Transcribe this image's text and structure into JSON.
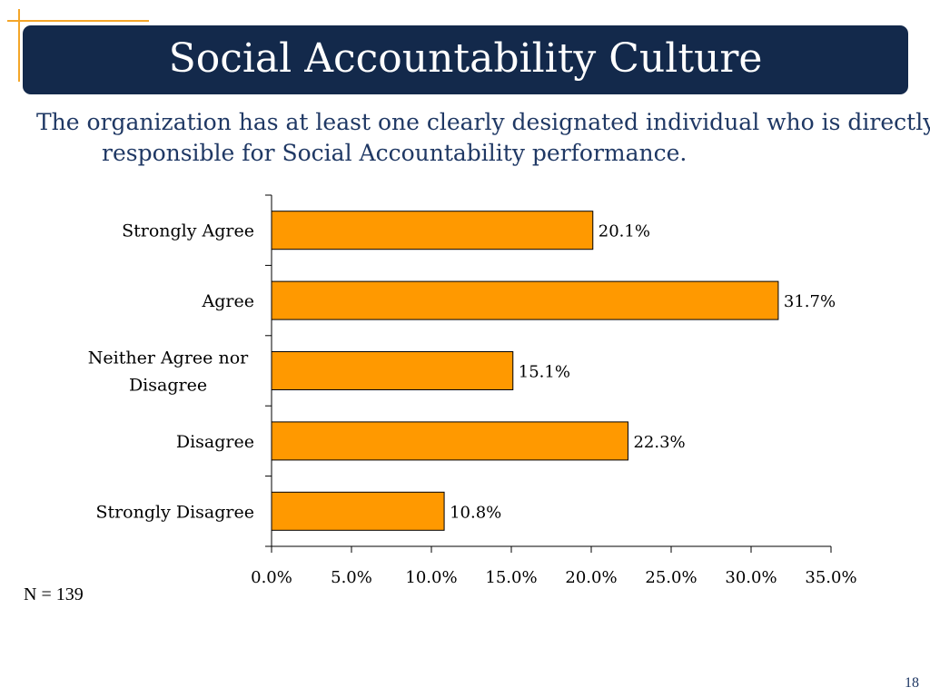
{
  "slide": {
    "title": "Social Accountability Culture",
    "subtitle": "The organization has at least one clearly designated individual who is directly responsible for Social Accountability performance.",
    "n_label": "N = 139",
    "page_number": "18"
  },
  "colors": {
    "title_bar": "#13294b",
    "bar_fill": "#ff9900",
    "accent_line": "#f4a629",
    "subtitle_text": "#1f3864"
  },
  "chart_data": {
    "type": "bar",
    "orientation": "horizontal",
    "categories": [
      "Strongly Agree",
      "Agree",
      "Neither Agree nor Disagree",
      "Disagree",
      "Strongly Disagree"
    ],
    "category_lines": [
      [
        "Strongly Agree"
      ],
      [
        "Agree"
      ],
      [
        "Neither Agree nor",
        "Disagree"
      ],
      [
        "Disagree"
      ],
      [
        "Strongly Disagree"
      ]
    ],
    "values": [
      20.1,
      31.7,
      15.1,
      22.3,
      10.8
    ],
    "data_labels": [
      "20.1%",
      "31.7%",
      "15.1%",
      "22.3%",
      "10.8%"
    ],
    "x_ticks": [
      0,
      5,
      10,
      15,
      20,
      25,
      30,
      35
    ],
    "x_tick_labels": [
      "0.0%",
      "5.0%",
      "10.0%",
      "15.0%",
      "20.0%",
      "25.0%",
      "30.0%",
      "35.0%"
    ],
    "xlim": [
      0,
      35
    ],
    "grid": false,
    "legend": "none",
    "title": "",
    "xlabel": "",
    "ylabel": ""
  }
}
